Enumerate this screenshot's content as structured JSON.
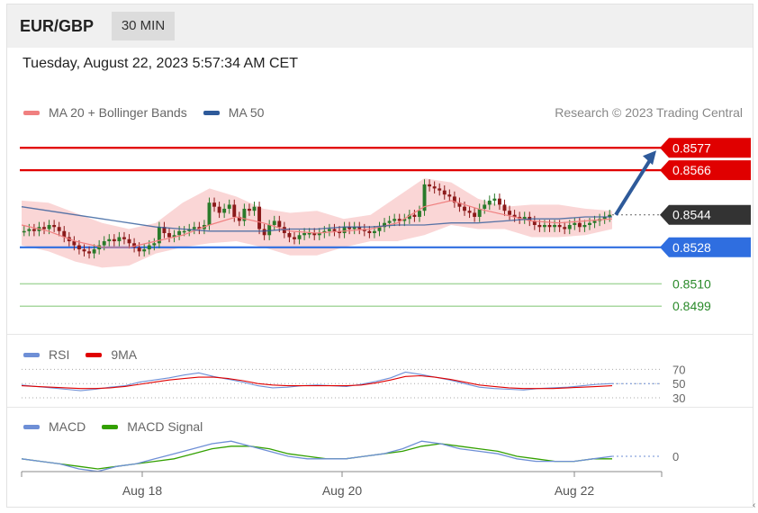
{
  "header": {
    "pair": "EUR/GBP",
    "timeframe": "30 MIN"
  },
  "timestamp": "Tuesday, August 22, 2023 5:57:34 AM CET",
  "credit": "Research © 2023 Trading Central",
  "legend_main": [
    {
      "label": "MA 20 + Bollinger Bands",
      "color": "#f08080"
    },
    {
      "label": "MA 50",
      "color": "#2e5a9a"
    }
  ],
  "legend_rsi": [
    {
      "label": "RSI",
      "color": "#6e8fd6"
    },
    {
      "label": "9MA",
      "color": "#e00000"
    }
  ],
  "legend_macd": [
    {
      "label": "MACD",
      "color": "#6e8fd6"
    },
    {
      "label": "MACD Signal",
      "color": "#33a000"
    }
  ],
  "colors": {
    "resistance": "#e00000",
    "support": "#2f6ee0",
    "target": "#2a8a2a",
    "current": "#333333",
    "candle_up": "#2a7a2a",
    "candle_down": "#8b1a1a",
    "band": "#f8c8c8"
  },
  "chart_data": [
    {
      "type": "candlestick",
      "title": "EUR/GBP 30 MIN",
      "x_ticks": [
        "Aug 18",
        "Aug 20",
        "Aug 22"
      ],
      "ylim": [
        0.8492,
        0.8582
      ],
      "levels": [
        {
          "value": 0.8577,
          "label": "0.8577",
          "kind": "resistance"
        },
        {
          "value": 0.8566,
          "label": "0.8566",
          "kind": "resistance"
        },
        {
          "value": 0.8544,
          "label": "0.8544",
          "kind": "current"
        },
        {
          "value": 0.8528,
          "label": "0.8528",
          "kind": "support"
        },
        {
          "value": 0.851,
          "label": "0.8510",
          "kind": "target"
        },
        {
          "value": 0.8499,
          "label": "0.8499",
          "kind": "target"
        }
      ],
      "close": [
        0.8536,
        0.8537,
        0.8536,
        0.8538,
        0.8537,
        0.8539,
        0.8538,
        0.8536,
        0.8533,
        0.8531,
        0.8529,
        0.8527,
        0.8526,
        0.8525,
        0.8527,
        0.8529,
        0.8531,
        0.8532,
        0.8531,
        0.8533,
        0.8532,
        0.853,
        0.8528,
        0.8526,
        0.8527,
        0.8529,
        0.853,
        0.8538,
        0.8535,
        0.8533,
        0.8534,
        0.8536,
        0.8536,
        0.8537,
        0.8538,
        0.8537,
        0.8539,
        0.855,
        0.8548,
        0.8545,
        0.8547,
        0.8549,
        0.8543,
        0.8541,
        0.8547,
        0.8546,
        0.8548,
        0.8537,
        0.8534,
        0.8539,
        0.8541,
        0.8538,
        0.8535,
        0.8533,
        0.8532,
        0.8534,
        0.8535,
        0.8535,
        0.8534,
        0.8535,
        0.8536,
        0.8537,
        0.8536,
        0.8535,
        0.8538,
        0.8537,
        0.8538,
        0.8537,
        0.8536,
        0.8535,
        0.8536,
        0.8538,
        0.854,
        0.8541,
        0.8542,
        0.8541,
        0.8542,
        0.8544,
        0.8543,
        0.8546,
        0.8559,
        0.8558,
        0.8557,
        0.8556,
        0.8554,
        0.8553,
        0.855,
        0.8548,
        0.8546,
        0.8545,
        0.8543,
        0.8547,
        0.8549,
        0.8551,
        0.8552,
        0.8549,
        0.8546,
        0.8544,
        0.8543,
        0.8542,
        0.8543,
        0.8541,
        0.8539,
        0.8538,
        0.8539,
        0.8538,
        0.8539,
        0.8538,
        0.8537,
        0.8539,
        0.854,
        0.8538,
        0.8539,
        0.854,
        0.8541,
        0.8542,
        0.8543,
        0.8544
      ],
      "ma50": [
        0.8548,
        0.8546,
        0.8544,
        0.8542,
        0.854,
        0.8538,
        0.8537,
        0.8536,
        0.8536,
        0.8536,
        0.8537,
        0.8537,
        0.8538,
        0.8538,
        0.8539,
        0.8539,
        0.854,
        0.854,
        0.8541,
        0.8542,
        0.8542,
        0.8543,
        0.8543
      ],
      "ma20": [
        0.8539,
        0.8536,
        0.8531,
        0.8528,
        0.8528,
        0.8531,
        0.8534,
        0.8539,
        0.8543,
        0.854,
        0.8536,
        0.8535,
        0.8536,
        0.8537,
        0.854,
        0.8548,
        0.8551,
        0.8547,
        0.8544,
        0.8541,
        0.854,
        0.8541,
        0.8542
      ],
      "bb_upper": [
        0.8551,
        0.855,
        0.8545,
        0.854,
        0.8537,
        0.854,
        0.855,
        0.8557,
        0.8553,
        0.8547,
        0.8545,
        0.8546,
        0.8542,
        0.8544,
        0.8553,
        0.8562,
        0.856,
        0.8552,
        0.8548,
        0.8549,
        0.8549,
        0.8547,
        0.8546
      ],
      "bb_lower": [
        0.8529,
        0.8526,
        0.8521,
        0.8518,
        0.8519,
        0.8525,
        0.8528,
        0.853,
        0.8531,
        0.8528,
        0.8524,
        0.8524,
        0.8528,
        0.8531,
        0.8531,
        0.8534,
        0.8539,
        0.8537,
        0.8537,
        0.8533,
        0.8533,
        0.8534,
        0.8537
      ],
      "projection": {
        "from": 0.8544,
        "to": 0.8577
      }
    },
    {
      "type": "line",
      "title": "RSI",
      "y_ticks": [
        70,
        50,
        30
      ],
      "ylim": [
        25,
        78
      ],
      "series": [
        {
          "name": "RSI",
          "values": [
            48,
            46,
            44,
            42,
            40,
            42,
            45,
            47,
            52,
            55,
            58,
            62,
            65,
            60,
            56,
            52,
            47,
            44,
            45,
            47,
            48,
            47,
            46,
            49,
            53,
            58,
            66,
            63,
            59,
            55,
            50,
            45,
            43,
            42,
            41,
            43,
            44,
            45,
            47,
            49,
            50
          ]
        },
        {
          "name": "9MA",
          "values": [
            47,
            46,
            45,
            44,
            43,
            43,
            44,
            46,
            49,
            52,
            55,
            57,
            59,
            59,
            57,
            54,
            50,
            48,
            47,
            47,
            47,
            47,
            47,
            48,
            51,
            55,
            60,
            61,
            59,
            56,
            52,
            48,
            46,
            44,
            43,
            43,
            43,
            44,
            45,
            46,
            47
          ]
        }
      ]
    },
    {
      "type": "line",
      "title": "MACD",
      "y_ticks": [
        0
      ],
      "ylim": [
        -0.001,
        0.001
      ],
      "series": [
        {
          "name": "MACD",
          "values": [
            -0.0001,
            -0.0002,
            -0.0003,
            -0.0005,
            -0.0006,
            -0.0004,
            -0.0003,
            -0.0001,
            0.0001,
            0.0003,
            0.0005,
            0.0006,
            0.0004,
            0.0002,
            0.0,
            -0.0001,
            -0.0001,
            -0.0001,
            0.0,
            0.0001,
            0.0003,
            0.0006,
            0.0005,
            0.0003,
            0.0002,
            0.0001,
            -0.0001,
            -0.0002,
            -0.0002,
            -0.0002,
            -0.0001,
            0.0
          ]
        },
        {
          "name": "MACD Signal",
          "values": [
            -0.0001,
            -0.0002,
            -0.0003,
            -0.0004,
            -0.0005,
            -0.0004,
            -0.0003,
            -0.0002,
            -0.0001,
            0.0001,
            0.0003,
            0.0004,
            0.0004,
            0.0003,
            0.0001,
            0.0,
            -0.0001,
            -0.0001,
            0.0,
            0.0001,
            0.0002,
            0.0004,
            0.0005,
            0.0004,
            0.0003,
            0.0002,
            0.0,
            -0.0001,
            -0.0002,
            -0.0002,
            -0.0001,
            -0.0001
          ]
        }
      ]
    }
  ]
}
